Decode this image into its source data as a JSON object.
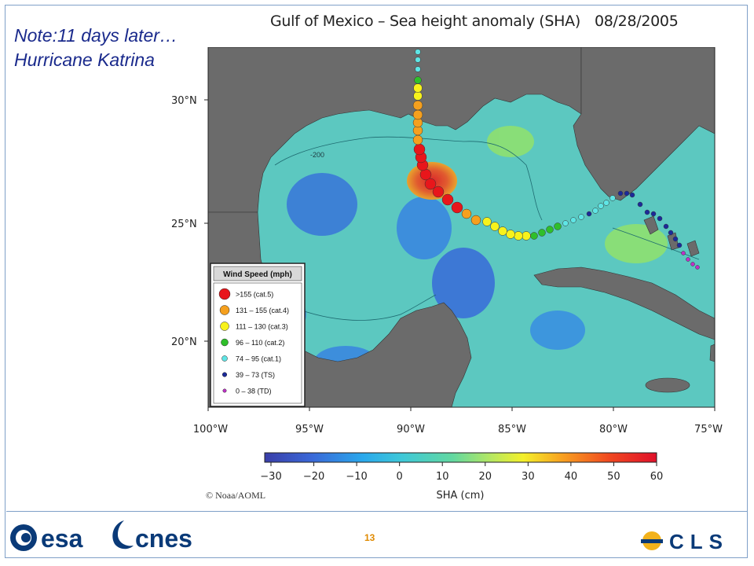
{
  "note": {
    "line1": "Note:11 days later…",
    "line2": "Hurricane Katrina"
  },
  "map": {
    "title": "Gulf of Mexico – Sea height anomaly (SHA)",
    "date": "08/28/2005",
    "lat_labels": [
      "30°N",
      "25°N",
      "20°N"
    ],
    "lon_labels": [
      "100°W",
      "95°W",
      "90°W",
      "85°W",
      "80°W",
      "75°W"
    ],
    "contour_label": "-200",
    "colors": {
      "land": "#6b6b6b",
      "ocean": "#5cc8c0",
      "cat5": "#e8161b",
      "cat4": "#f5a01e",
      "cat3": "#f7f21c",
      "cat2": "#2fbf2a",
      "cat1": "#5fe5e5",
      "ts": "#1c2a9a",
      "td": "#c030c8"
    }
  },
  "legend": {
    "title": "Wind Speed (mph)",
    "items": [
      {
        "label": ">155 (cat.5)",
        "color": "#e8161b"
      },
      {
        "label": "131 – 155 (cat.4)",
        "color": "#f5a01e"
      },
      {
        "label": "111 – 130 (cat.3)",
        "color": "#f7f21c"
      },
      {
        "label": "96 – 110 (cat.2)",
        "color": "#2fbf2a"
      },
      {
        "label": "74 – 95 (cat.1)",
        "color": "#5fe5e5"
      },
      {
        "label": "39 – 73 (TS)",
        "color": "#1c2a9a"
      },
      {
        "label": "0 – 38 (TD)",
        "color": "#c030c8"
      }
    ]
  },
  "colorbar": {
    "ticks": [
      "−30",
      "−20",
      "−10",
      "0",
      "10",
      "20",
      "30",
      "40",
      "50",
      "60"
    ],
    "label": "SHA (cm)"
  },
  "credit": "© Noaa/AOML",
  "footer": {
    "page_number": "13",
    "esa_logo": "esa",
    "cnes_logo": "cnes",
    "cls_logo": "CLS"
  }
}
